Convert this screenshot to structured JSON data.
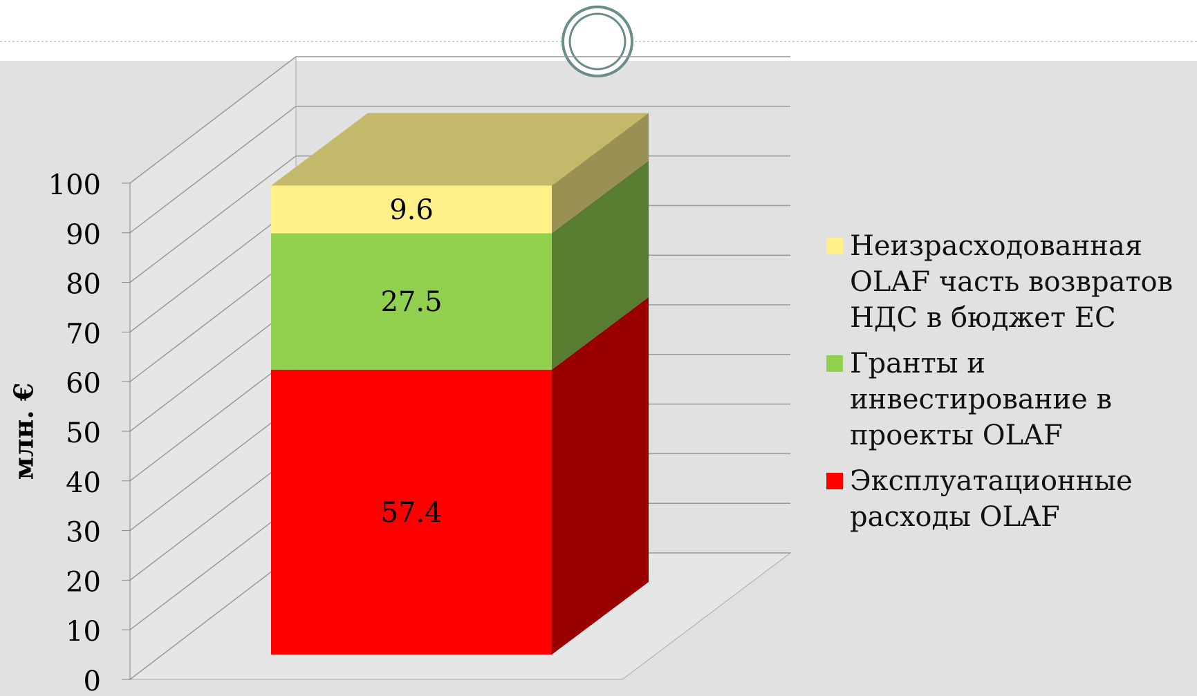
{
  "chart_data": {
    "type": "bar3d_stacked",
    "y_label": "млн. €",
    "categories": [
      null
    ],
    "series": [
      {
        "name": "Эксплуатационные расходы OLAF",
        "color": "#ff0000",
        "values": [
          57.4
        ]
      },
      {
        "name": "Гранты и инвестирование в проекты OLAF",
        "color": "#92d050",
        "values": [
          27.5
        ]
      },
      {
        "name": "Неизрасходованная OLAF часть возвратов НДС в бюджет ЕС",
        "color": "#fff08a",
        "values": [
          9.6
        ]
      }
    ],
    "ylim": [
      0,
      100
    ],
    "yticks": [
      0,
      10,
      20,
      30,
      40,
      50,
      60,
      70,
      80,
      90,
      100
    ],
    "grid": true
  }
}
